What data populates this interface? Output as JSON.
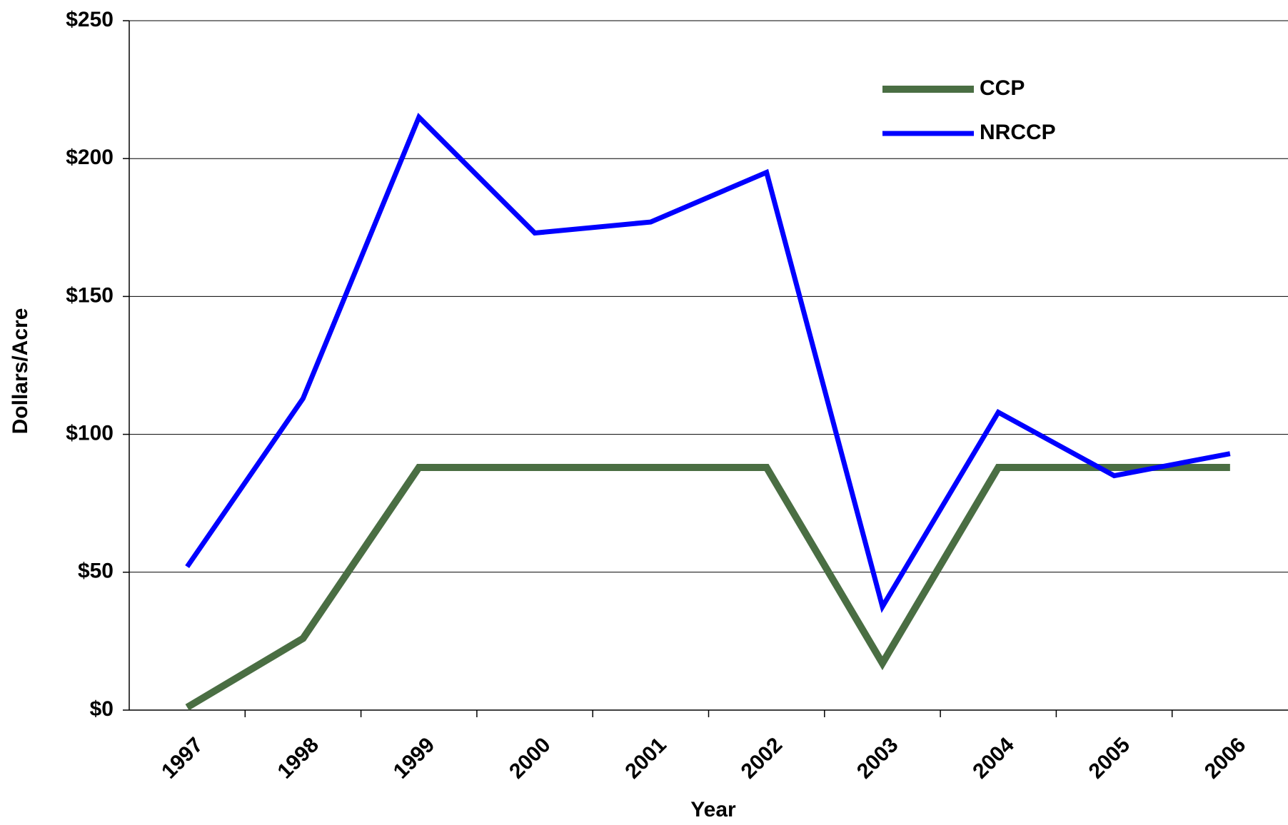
{
  "chart_data": {
    "type": "line",
    "x_label": "Year",
    "y_label": "Dollars/Acre",
    "categories": [
      "1997",
      "1998",
      "1999",
      "2000",
      "2001",
      "2002",
      "2003",
      "2004",
      "2005",
      "2006"
    ],
    "series": [
      {
        "name": "CCP",
        "color": "#4a6e43",
        "values": [
          1,
          26,
          88,
          88,
          88,
          88,
          17,
          88,
          88,
          88
        ]
      },
      {
        "name": "NRCCP",
        "color": "#0000ff",
        "values": [
          52,
          113,
          215,
          173,
          177,
          195,
          37.5,
          108,
          85,
          93
        ]
      }
    ],
    "ylim": [
      0,
      250
    ],
    "yticks": [
      {
        "value": 0,
        "label": "$0"
      },
      {
        "value": 50,
        "label": "$50"
      },
      {
        "value": 100,
        "label": "$100"
      },
      {
        "value": 150,
        "label": "$150"
      },
      {
        "value": 200,
        "label": "$200"
      },
      {
        "value": 250,
        "label": "$250"
      }
    ],
    "grid": true,
    "legend": "upper right"
  }
}
